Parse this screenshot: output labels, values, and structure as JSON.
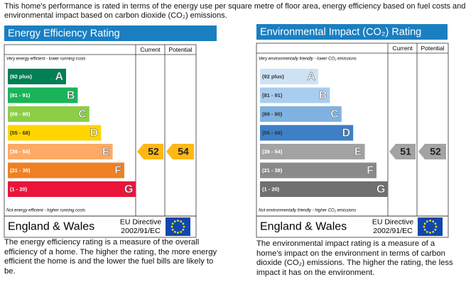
{
  "intro": "This home's performance is rated in terms of the energy use per square metre of floor area, energy efficiency based on fuel costs and environmental impact based on carbon dioxide (CO₂) emissions.",
  "panels": [
    {
      "title": "Energy Efficiency Rating",
      "headers": [
        "Current",
        "Potential"
      ],
      "top_note": "Very energy efficient - lower running costs",
      "bands": [
        {
          "range": "(92 plus)",
          "letter": "A",
          "color": "#008054"
        },
        {
          "range": "(81 - 91)",
          "letter": "B",
          "color": "#19b459"
        },
        {
          "range": "(69 - 80)",
          "letter": "C",
          "color": "#8dce46"
        },
        {
          "range": "(55 - 68)",
          "letter": "D",
          "color": "#ffd500"
        },
        {
          "range": "(39 - 54)",
          "letter": "E",
          "color": "#fcaa65"
        },
        {
          "range": "(21 - 38)",
          "letter": "F",
          "color": "#ef8023"
        },
        {
          "range": "(1 - 20)",
          "letter": "G",
          "color": "#e9153b"
        }
      ],
      "current": 52,
      "potential": 54,
      "arrow_color": "#fcb814",
      "bottom_note": "Not energy efficient - higher running costs",
      "region": "England & Wales",
      "directive": [
        "EU Directive",
        "2002/91/EC"
      ],
      "description": "The energy efficiency rating is a measure of the overall efficiency of a home. The higher the rating, the more energy efficient the home is and the lower the fuel bills are likely to be."
    },
    {
      "title": "Environmental Impact (CO₂) Rating",
      "headers": [
        "Current",
        "Potential"
      ],
      "top_note": "Very environmentally friendly - lower CO₂ emissions",
      "bands": [
        {
          "range": "(92 plus)",
          "letter": "A",
          "color": "#cde3f5"
        },
        {
          "range": "(81 - 91)",
          "letter": "B",
          "color": "#a8cdef"
        },
        {
          "range": "(69 - 80)",
          "letter": "C",
          "color": "#7fb2e0"
        },
        {
          "range": "(55 - 68)",
          "letter": "D",
          "color": "#3e7fc6"
        },
        {
          "range": "(39 - 54)",
          "letter": "E",
          "color": "#a3a3a3"
        },
        {
          "range": "(21 - 38)",
          "letter": "F",
          "color": "#8a8a8a"
        },
        {
          "range": "(1 - 20)",
          "letter": "G",
          "color": "#707070"
        }
      ],
      "current": 51,
      "potential": 52,
      "arrow_color": "#a3a3a3",
      "bottom_note": "Not environmentally friendly - higher CO₂ emissions",
      "region": "England & Wales",
      "directive": [
        "EU Directive",
        "2002/91/EC"
      ],
      "description": "The environmental impact rating is a measure of a home's impact on the environment in terms of carbon dioxide (CO₂) emissions. The higher the rating, the less impact it has on the environment."
    }
  ]
}
